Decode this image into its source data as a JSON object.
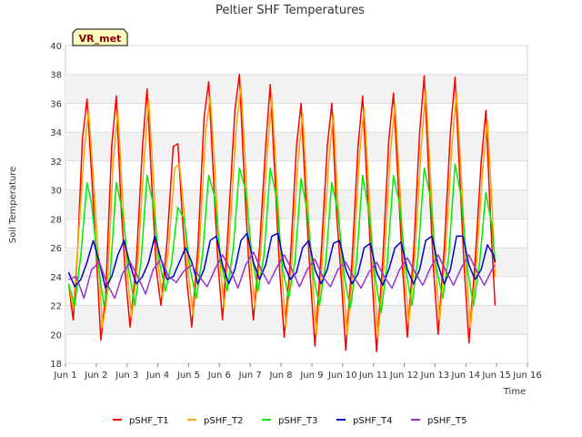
{
  "chart_data": {
    "type": "line",
    "title": "Peltier SHF Temperatures",
    "xlabel": "Time",
    "ylabel": "Soil Temperature",
    "badge": "VR_met",
    "xlim": [
      1,
      16
    ],
    "ylim": [
      18,
      40
    ],
    "x_ticks": [
      {
        "value": 1,
        "label": "Jun 1"
      },
      {
        "value": 2,
        "label": "Jun 2"
      },
      {
        "value": 3,
        "label": "Jun 3"
      },
      {
        "value": 4,
        "label": "Jun 4"
      },
      {
        "value": 5,
        "label": "Jun 5"
      },
      {
        "value": 6,
        "label": "Jun 6"
      },
      {
        "value": 7,
        "label": "Jun 7"
      },
      {
        "value": 8,
        "label": "Jun 8"
      },
      {
        "value": 9,
        "label": "Jun 9"
      },
      {
        "value": 10,
        "label": "Jun 10"
      },
      {
        "value": 11,
        "label": "Jun 11"
      },
      {
        "value": 12,
        "label": "Jun 12"
      },
      {
        "value": 13,
        "label": "Jun 13"
      },
      {
        "value": 14,
        "label": "Jun 14"
      },
      {
        "value": 15,
        "label": "Jun 15"
      },
      {
        "value": 16,
        "label": "Jun 16"
      }
    ],
    "y_ticks": [
      18,
      20,
      22,
      24,
      26,
      28,
      30,
      32,
      34,
      36,
      38,
      40
    ],
    "grid": true,
    "legend_position": "bottom",
    "series": [
      {
        "name": "pSHF_T1",
        "color": "#ff0000",
        "x": [
          1.1,
          1.25,
          1.4,
          1.55,
          1.7,
          1.85,
          2.0,
          2.15,
          2.3,
          2.5,
          2.65,
          2.8,
          2.95,
          3.1,
          3.3,
          3.5,
          3.65,
          3.8,
          3.95,
          4.1,
          4.3,
          4.5,
          4.65,
          4.8,
          4.95,
          5.1,
          5.3,
          5.5,
          5.65,
          5.8,
          5.95,
          6.1,
          6.3,
          6.5,
          6.65,
          6.8,
          6.95,
          7.1,
          7.3,
          7.5,
          7.65,
          7.8,
          7.95,
          8.1,
          8.3,
          8.5,
          8.65,
          8.8,
          8.95,
          9.1,
          9.3,
          9.5,
          9.65,
          9.8,
          9.95,
          10.1,
          10.3,
          10.5,
          10.65,
          10.8,
          10.95,
          11.1,
          11.3,
          11.5,
          11.65,
          11.8,
          11.95,
          12.1,
          12.3,
          12.5,
          12.65,
          12.8,
          12.95,
          13.1,
          13.3,
          13.5,
          13.65,
          13.8,
          13.95,
          14.1,
          14.3,
          14.5,
          14.65,
          14.8,
          14.95
        ],
        "y": [
          23.5,
          21.0,
          26.0,
          33.5,
          36.3,
          31.0,
          25.5,
          19.6,
          22.5,
          33.0,
          36.5,
          29.0,
          24.0,
          20.5,
          25.0,
          33.0,
          37.0,
          30.5,
          24.5,
          22.0,
          26.5,
          33.0,
          33.2,
          28.0,
          23.5,
          20.5,
          26.0,
          35.0,
          37.5,
          31.0,
          25.0,
          21.0,
          28.0,
          35.5,
          38.0,
          31.0,
          25.0,
          21.0,
          26.0,
          33.0,
          37.3,
          31.0,
          24.5,
          19.8,
          25.0,
          33.0,
          36.0,
          29.5,
          24.0,
          19.2,
          25.5,
          33.0,
          36.0,
          28.5,
          24.0,
          18.9,
          25.0,
          33.0,
          36.5,
          30.0,
          24.0,
          18.8,
          25.0,
          33.5,
          36.7,
          30.5,
          24.5,
          19.8,
          25.5,
          34.0,
          37.9,
          31.0,
          24.5,
          20.0,
          26.0,
          34.0,
          37.8,
          31.0,
          24.5,
          19.4,
          25.0,
          32.0,
          35.5,
          28.0,
          22.0
        ]
      },
      {
        "name": "pSHF_T2",
        "color": "#ffa500",
        "x": [
          1.1,
          1.25,
          1.4,
          1.6,
          1.75,
          1.9,
          2.05,
          2.2,
          2.35,
          2.55,
          2.7,
          2.85,
          3.0,
          3.15,
          3.35,
          3.55,
          3.7,
          3.85,
          4.0,
          4.15,
          4.35,
          4.55,
          4.7,
          4.85,
          5.0,
          5.15,
          5.35,
          5.55,
          5.7,
          5.85,
          6.0,
          6.15,
          6.35,
          6.55,
          6.7,
          6.85,
          7.0,
          7.15,
          7.35,
          7.55,
          7.7,
          7.85,
          8.0,
          8.15,
          8.35,
          8.55,
          8.7,
          8.85,
          9.0,
          9.15,
          9.35,
          9.55,
          9.7,
          9.85,
          10.0,
          10.15,
          10.35,
          10.55,
          10.7,
          10.85,
          11.0,
          11.15,
          11.35,
          11.55,
          11.7,
          11.85,
          12.0,
          12.15,
          12.35,
          12.55,
          12.7,
          12.85,
          13.0,
          13.15,
          13.35,
          13.55,
          13.7,
          13.85,
          14.0,
          14.15,
          14.35,
          14.55,
          14.7,
          14.85,
          14.95
        ],
        "y": [
          23.5,
          21.8,
          26.0,
          32.5,
          35.5,
          31.0,
          26.0,
          20.5,
          22.5,
          32.0,
          35.5,
          29.5,
          24.5,
          21.2,
          25.0,
          32.0,
          36.3,
          31.0,
          25.0,
          22.5,
          26.0,
          31.5,
          31.8,
          28.5,
          24.0,
          21.3,
          26.0,
          34.0,
          36.5,
          31.5,
          25.5,
          21.8,
          27.5,
          34.5,
          37.2,
          31.5,
          25.5,
          21.8,
          26.0,
          32.5,
          36.5,
          31.0,
          25.0,
          20.5,
          25.0,
          32.0,
          35.3,
          29.5,
          24.5,
          20.0,
          25.5,
          32.0,
          35.3,
          29.0,
          24.0,
          20.0,
          25.0,
          32.5,
          35.7,
          30.0,
          24.5,
          19.8,
          25.0,
          32.5,
          36.0,
          30.5,
          24.5,
          20.8,
          25.5,
          33.0,
          36.9,
          31.0,
          25.0,
          21.0,
          26.0,
          33.0,
          36.7,
          31.0,
          25.0,
          20.5,
          25.0,
          31.5,
          34.8,
          29.0,
          24.0
        ]
      },
      {
        "name": "pSHF_T3",
        "color": "#00ee00",
        "x": [
          1.1,
          1.3,
          1.5,
          1.7,
          1.85,
          2.05,
          2.25,
          2.45,
          2.65,
          2.85,
          3.05,
          3.25,
          3.45,
          3.65,
          3.85,
          4.05,
          4.25,
          4.45,
          4.65,
          4.85,
          5.05,
          5.25,
          5.45,
          5.65,
          5.85,
          6.05,
          6.25,
          6.45,
          6.65,
          6.85,
          7.05,
          7.25,
          7.45,
          7.65,
          7.85,
          8.05,
          8.25,
          8.45,
          8.65,
          8.85,
          9.05,
          9.25,
          9.45,
          9.65,
          9.85,
          10.05,
          10.25,
          10.45,
          10.65,
          10.85,
          11.05,
          11.25,
          11.45,
          11.65,
          11.85,
          12.05,
          12.25,
          12.45,
          12.65,
          12.85,
          13.05,
          13.25,
          13.45,
          13.65,
          13.85,
          14.05,
          14.25,
          14.45,
          14.65,
          14.85,
          14.95
        ],
        "y": [
          23.5,
          22.0,
          25.5,
          30.5,
          29.0,
          25.0,
          22.0,
          24.0,
          30.5,
          28.5,
          24.5,
          22.0,
          25.0,
          31.0,
          29.0,
          25.0,
          23.0,
          25.0,
          28.8,
          28.0,
          24.5,
          22.5,
          25.5,
          31.0,
          29.5,
          25.0,
          23.0,
          26.0,
          31.5,
          30.0,
          25.5,
          23.0,
          25.5,
          31.5,
          29.5,
          24.5,
          22.5,
          25.0,
          30.8,
          28.5,
          24.0,
          22.0,
          25.0,
          30.5,
          28.5,
          24.0,
          21.8,
          25.0,
          31.0,
          28.5,
          24.0,
          21.5,
          25.0,
          31.0,
          29.0,
          24.5,
          22.0,
          25.5,
          31.5,
          29.5,
          24.5,
          22.5,
          25.5,
          31.8,
          29.5,
          24.5,
          22.0,
          25.0,
          29.8,
          27.5,
          25.0
        ]
      },
      {
        "name": "pSHF_T4",
        "color": "#0000cc",
        "x": [
          1.1,
          1.3,
          1.5,
          1.7,
          1.9,
          2.1,
          2.3,
          2.5,
          2.7,
          2.9,
          3.1,
          3.3,
          3.5,
          3.7,
          3.9,
          4.1,
          4.3,
          4.5,
          4.7,
          4.9,
          5.1,
          5.3,
          5.5,
          5.7,
          5.9,
          6.1,
          6.3,
          6.5,
          6.7,
          6.9,
          7.1,
          7.3,
          7.5,
          7.7,
          7.9,
          8.1,
          8.3,
          8.5,
          8.7,
          8.9,
          9.1,
          9.3,
          9.5,
          9.7,
          9.9,
          10.1,
          10.3,
          10.5,
          10.7,
          10.9,
          11.1,
          11.3,
          11.5,
          11.7,
          11.9,
          12.1,
          12.3,
          12.5,
          12.7,
          12.9,
          13.1,
          13.3,
          13.5,
          13.7,
          13.9,
          14.1,
          14.3,
          14.5,
          14.7,
          14.9,
          14.95
        ],
        "y": [
          24.3,
          23.3,
          23.8,
          25.0,
          26.5,
          25.0,
          23.2,
          24.0,
          25.5,
          26.5,
          24.8,
          23.5,
          24.0,
          25.0,
          26.8,
          25.2,
          23.8,
          24.0,
          25.0,
          26.0,
          25.0,
          23.5,
          24.5,
          26.5,
          26.8,
          24.8,
          23.5,
          24.5,
          26.5,
          27.0,
          25.0,
          23.8,
          24.8,
          26.8,
          27.0,
          24.8,
          23.8,
          24.3,
          26.0,
          26.5,
          24.5,
          23.5,
          24.5,
          26.3,
          26.5,
          24.5,
          23.5,
          24.2,
          26.0,
          26.3,
          24.3,
          23.4,
          24.5,
          26.0,
          26.4,
          24.5,
          23.5,
          24.5,
          26.5,
          26.8,
          24.8,
          23.5,
          24.5,
          26.8,
          26.8,
          24.8,
          23.8,
          24.5,
          26.2,
          25.5,
          25.0
        ]
      },
      {
        "name": "pSHF_T5",
        "color": "#9932cc",
        "x": [
          1.1,
          1.35,
          1.6,
          1.85,
          2.1,
          2.35,
          2.6,
          2.85,
          3.1,
          3.35,
          3.6,
          3.85,
          4.1,
          4.35,
          4.6,
          4.85,
          5.1,
          5.35,
          5.6,
          5.85,
          6.1,
          6.35,
          6.6,
          6.85,
          7.1,
          7.35,
          7.6,
          7.85,
          8.1,
          8.35,
          8.6,
          8.85,
          9.1,
          9.35,
          9.6,
          9.85,
          10.1,
          10.35,
          10.6,
          10.85,
          11.1,
          11.35,
          11.6,
          11.85,
          12.1,
          12.35,
          12.6,
          12.85,
          13.1,
          13.35,
          13.6,
          13.85,
          14.1,
          14.35,
          14.6,
          14.85,
          14.95
        ],
        "y": [
          23.8,
          24.0,
          22.5,
          24.5,
          25.0,
          23.5,
          22.5,
          24.2,
          25.0,
          24.0,
          22.8,
          24.5,
          25.2,
          24.0,
          23.6,
          24.4,
          24.8,
          24.0,
          23.3,
          24.5,
          25.5,
          24.5,
          23.2,
          24.8,
          25.7,
          24.5,
          23.5,
          24.6,
          25.5,
          24.5,
          23.3,
          24.5,
          25.2,
          24.0,
          23.3,
          24.5,
          25.0,
          24.0,
          23.2,
          24.3,
          25.0,
          24.0,
          23.2,
          24.5,
          25.3,
          24.3,
          23.4,
          24.6,
          25.5,
          24.4,
          23.4,
          24.6,
          25.5,
          24.4,
          23.4,
          24.5,
          24.8
        ]
      }
    ]
  }
}
